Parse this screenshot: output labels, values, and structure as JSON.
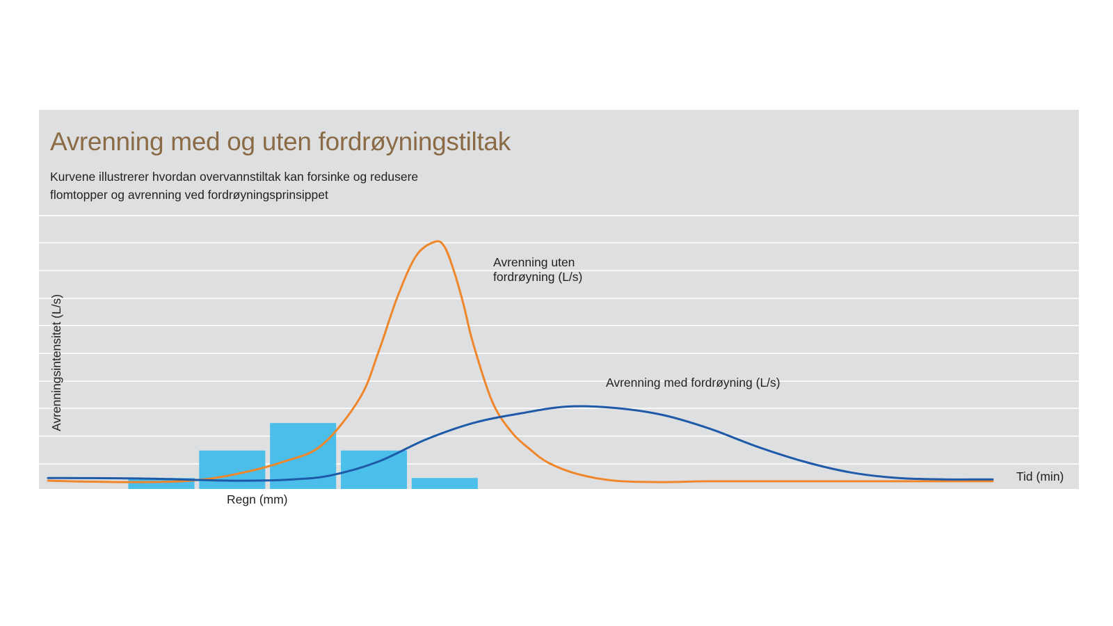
{
  "chart_data": {
    "type": "line",
    "title": "Avrenning med og uten fordrøyningstiltak",
    "subtitle": [
      "Kurvene illustrerer hvordan overvannstiltak kan forsinke og redusere",
      "flomtopper og avrenning ved fordrøyningsprinsippet"
    ],
    "xlabel": "Tid (min)",
    "ylabel": "Avrenningsintensitet (L/s)",
    "bar_label": "Regn (mm)",
    "xlim": [
      0,
      100
    ],
    "ylim": [
      0,
      10
    ],
    "grid": true,
    "rain_bars": [
      {
        "x_start": 8.5,
        "x_end": 15.5,
        "value": 0.4
      },
      {
        "x_start": 16.0,
        "x_end": 23.0,
        "value": 1.4
      },
      {
        "x_start": 23.5,
        "x_end": 30.5,
        "value": 2.4
      },
      {
        "x_start": 31.0,
        "x_end": 38.0,
        "value": 1.4
      },
      {
        "x_start": 38.5,
        "x_end": 45.5,
        "value": 0.4
      }
    ],
    "series": [
      {
        "name": "Avrenning uten fordrøyning (L/s)",
        "label_lines": [
          "Avrenning uten",
          "fordrøyning (L/s)"
        ],
        "color": "#f0862a",
        "x": [
          0,
          8,
          15,
          20,
          25,
          29,
          33,
          35,
          37,
          39,
          41,
          42,
          43,
          44,
          45,
          47,
          49,
          51,
          53,
          56,
          60,
          65,
          70,
          80,
          90,
          100
        ],
        "y": [
          0.3,
          0.25,
          0.3,
          0.55,
          1.0,
          1.6,
          3.3,
          5.0,
          7.0,
          8.5,
          9.0,
          8.8,
          7.9,
          6.7,
          5.3,
          3.2,
          2.1,
          1.45,
          0.95,
          0.55,
          0.3,
          0.25,
          0.28,
          0.28,
          0.28,
          0.28
        ]
      },
      {
        "name": "Avrenning med fordrøyning (L/s)",
        "label_lines": [
          "Avrenning med fordrøyning (L/s)"
        ],
        "color": "#1e5aa8",
        "x": [
          0,
          10,
          20,
          26,
          30,
          35,
          40,
          45,
          50,
          55,
          60,
          65,
          70,
          75,
          80,
          85,
          90,
          95,
          100
        ],
        "y": [
          0.4,
          0.38,
          0.3,
          0.35,
          0.5,
          1.0,
          1.8,
          2.4,
          2.75,
          3.0,
          2.95,
          2.7,
          2.2,
          1.55,
          1.0,
          0.6,
          0.4,
          0.35,
          0.35
        ]
      }
    ]
  }
}
